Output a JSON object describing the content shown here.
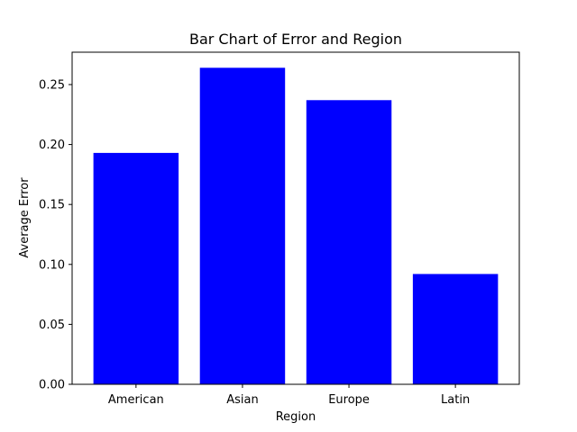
{
  "chart_data": {
    "type": "bar",
    "title": "Bar Chart of Error and Region",
    "xlabel": "Region",
    "ylabel": "Average Error",
    "categories": [
      "American",
      "Asian",
      "Europe",
      "Latin"
    ],
    "values": [
      0.193,
      0.264,
      0.237,
      0.092
    ],
    "ylim": [
      0,
      0.277
    ],
    "yticks": [
      0.0,
      0.05,
      0.1,
      0.15,
      0.2,
      0.25
    ],
    "ytick_labels": [
      "0.00",
      "0.05",
      "0.10",
      "0.15",
      "0.20",
      "0.25"
    ],
    "bar_color": "#0000ff",
    "grid": false,
    "legend": "none"
  }
}
